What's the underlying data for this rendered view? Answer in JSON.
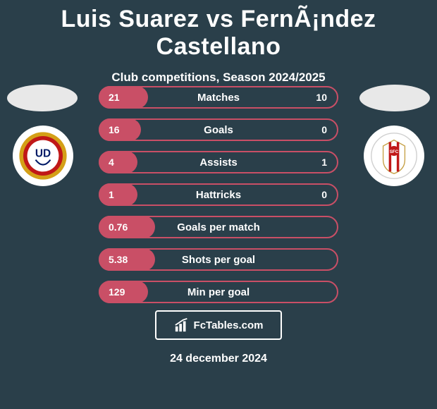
{
  "title": "Luis Suarez vs FernÃ¡ndez Castellano",
  "subtitle": "Club competitions, Season 2024/2025",
  "date": "24 december 2024",
  "brand": "FcTables.com",
  "colors": {
    "background": "#2a3f4a",
    "player1_accent": "#c94f66",
    "player2_accent": "#6a6a6a",
    "text": "#ffffff",
    "ellipse": "#e8e8e8"
  },
  "player1": {
    "club_colors": {
      "outer": "#d4a017",
      "mid": "#c01818",
      "inner": "#ffffff",
      "text": "#001a66"
    },
    "club_initials": "UD"
  },
  "player2": {
    "club_colors": {
      "bg": "#ffffff",
      "stripe": "#c01818",
      "crest_border": "#c7a34a"
    }
  },
  "stats": [
    {
      "label": "Matches",
      "p1": "21",
      "p2": "10",
      "p1_loz_width": 70,
      "border": "#c94f66",
      "show_p2": true
    },
    {
      "label": "Goals",
      "p1": "16",
      "p2": "0",
      "p1_loz_width": 60,
      "border": "#c94f66",
      "show_p2": true
    },
    {
      "label": "Assists",
      "p1": "4",
      "p2": "1",
      "p1_loz_width": 50,
      "border": "#c94f66",
      "show_p2": true
    },
    {
      "label": "Hattricks",
      "p1": "1",
      "p2": "0",
      "p1_loz_width": 50,
      "border": "#c94f66",
      "show_p2": true
    },
    {
      "label": "Goals per match",
      "p1": "0.76",
      "p2": "",
      "p1_loz_width": 80,
      "border": "#c94f66",
      "show_p2": false
    },
    {
      "label": "Shots per goal",
      "p1": "5.38",
      "p2": "",
      "p1_loz_width": 80,
      "border": "#c94f66",
      "show_p2": false
    },
    {
      "label": "Min per goal",
      "p1": "129",
      "p2": "",
      "p1_loz_width": 70,
      "border": "#c94f66",
      "show_p2": false
    }
  ]
}
